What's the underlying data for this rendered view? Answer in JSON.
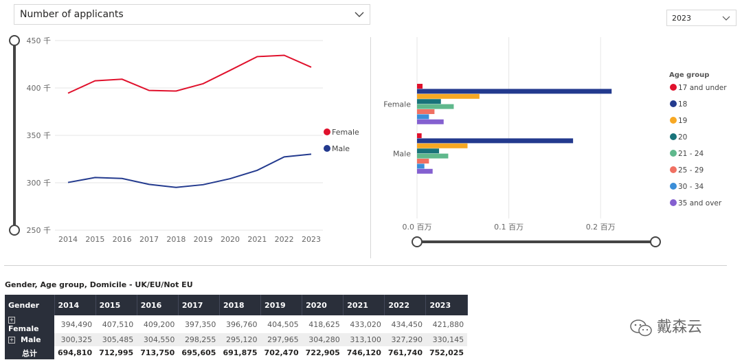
{
  "metric_dropdown": {
    "value": "Number of applicants"
  },
  "year_dropdown": {
    "value": "2023"
  },
  "colors": {
    "female": "#e0112c",
    "male": "#233a8e",
    "grid": "#e6e6e6",
    "axis_text": "#666666",
    "slider": "#444444"
  },
  "chart_data": [
    {
      "type": "line",
      "x": [
        2014,
        2015,
        2016,
        2017,
        2018,
        2019,
        2020,
        2021,
        2022,
        2023
      ],
      "series": [
        {
          "name": "Female",
          "color": "#e0112c",
          "values": [
            394490,
            407510,
            409200,
            397350,
            396760,
            404505,
            418625,
            433020,
            434450,
            421880
          ]
        },
        {
          "name": "Male",
          "color": "#233a8e",
          "values": [
            300325,
            305485,
            304550,
            298255,
            295120,
            297965,
            304280,
            313100,
            327290,
            330145
          ]
        }
      ],
      "ylim": [
        250000,
        450000
      ],
      "yticks": [
        250000,
        300000,
        350000,
        400000,
        450000
      ],
      "ytick_labels": [
        "250 千",
        "300 千",
        "350 千",
        "400 千",
        "450 千"
      ],
      "legend": [
        "Female",
        "Male"
      ],
      "legend_position": "right"
    },
    {
      "type": "bar",
      "orientation": "horizontal",
      "categories": [
        "Female",
        "Male"
      ],
      "legend_title": "Age group",
      "series": [
        {
          "name": "17 and under",
          "color": "#e0112c",
          "values": [
            0.006,
            0.005
          ]
        },
        {
          "name": "18",
          "color": "#233a8e",
          "values": [
            0.212,
            0.17
          ]
        },
        {
          "name": "19",
          "color": "#f7a823",
          "values": [
            0.068,
            0.055
          ]
        },
        {
          "name": "20",
          "color": "#18737a",
          "values": [
            0.026,
            0.024
          ]
        },
        {
          "name": "21 - 24",
          "color": "#5fb88c",
          "values": [
            0.04,
            0.034
          ]
        },
        {
          "name": "25 - 29",
          "color": "#f07062",
          "values": [
            0.019,
            0.013
          ]
        },
        {
          "name": "30 - 34",
          "color": "#3b8ed8",
          "values": [
            0.013,
            0.008
          ]
        },
        {
          "name": "35 and over",
          "color": "#8460d0",
          "values": [
            0.029,
            0.017
          ]
        }
      ],
      "xlim": [
        0,
        0.25
      ],
      "xticks": [
        0,
        0.1,
        0.2
      ],
      "xtick_labels": [
        "0.0 百万",
        "0.1 百万",
        "0.2 百万"
      ],
      "legend_position": "right"
    }
  ],
  "table": {
    "title": "Gender, Age group, Domicile - UK/EU/Not EU",
    "header": [
      "Gender",
      "2014",
      "2015",
      "2016",
      "2017",
      "2018",
      "2019",
      "2020",
      "2021",
      "2022",
      "2023"
    ],
    "rows": [
      {
        "label": "Female",
        "values": [
          "394,490",
          "407,510",
          "409,200",
          "397,350",
          "396,760",
          "404,505",
          "418,625",
          "433,020",
          "434,450",
          "421,880"
        ]
      },
      {
        "label": "Male",
        "values": [
          "300,325",
          "305,485",
          "304,550",
          "298,255",
          "295,120",
          "297,965",
          "304,280",
          "313,100",
          "327,290",
          "330,145"
        ]
      }
    ],
    "total": {
      "label": "总计",
      "values": [
        "694,810",
        "712,995",
        "713,750",
        "695,605",
        "691,875",
        "702,470",
        "722,905",
        "746,120",
        "761,740",
        "752,025"
      ]
    },
    "expander_glyph": "+"
  },
  "watermark": {
    "text": "戴森云",
    "icon": "wechat-icon"
  }
}
